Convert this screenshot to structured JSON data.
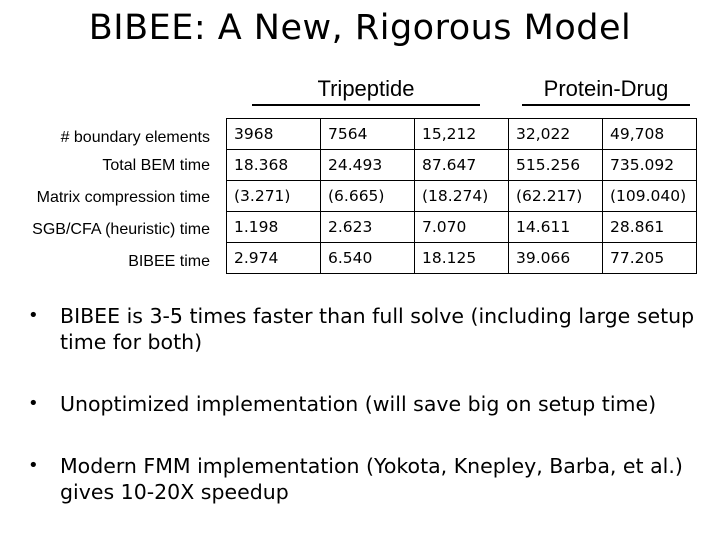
{
  "slide": {
    "title": "BIBEE: A New, Rigorous Model"
  },
  "table": {
    "group_headers": [
      "Tripeptide",
      "Protein-Drug"
    ],
    "row_labels": [
      "# boundary elements",
      "Total BEM time",
      "Matrix compression time",
      "SGB/CFA (heuristic) time",
      "BIBEE time"
    ],
    "rows": [
      [
        "3968",
        "7564",
        "15,212",
        "32,022",
        "49,708"
      ],
      [
        "18.368",
        "24.493",
        "87.647",
        "515.256",
        "735.092"
      ],
      [
        "(3.271)",
        "(6.665)",
        "(18.274)",
        "(62.217)",
        "(109.040)"
      ],
      [
        "1.198",
        "2.623",
        "7.070",
        "14.611",
        "28.861"
      ],
      [
        "2.974",
        "6.540",
        "18.125",
        "39.066",
        "77.205"
      ]
    ]
  },
  "bullets": [
    "BIBEE is 3-5 times faster than full solve (including large setup time for both)",
    "Unoptimized implementation (will save big on setup time)",
    "Modern FMM implementation (Yokota, Knepley, Barba, et al.) gives 10-20X speedup"
  ],
  "bullet_glyph": "•"
}
